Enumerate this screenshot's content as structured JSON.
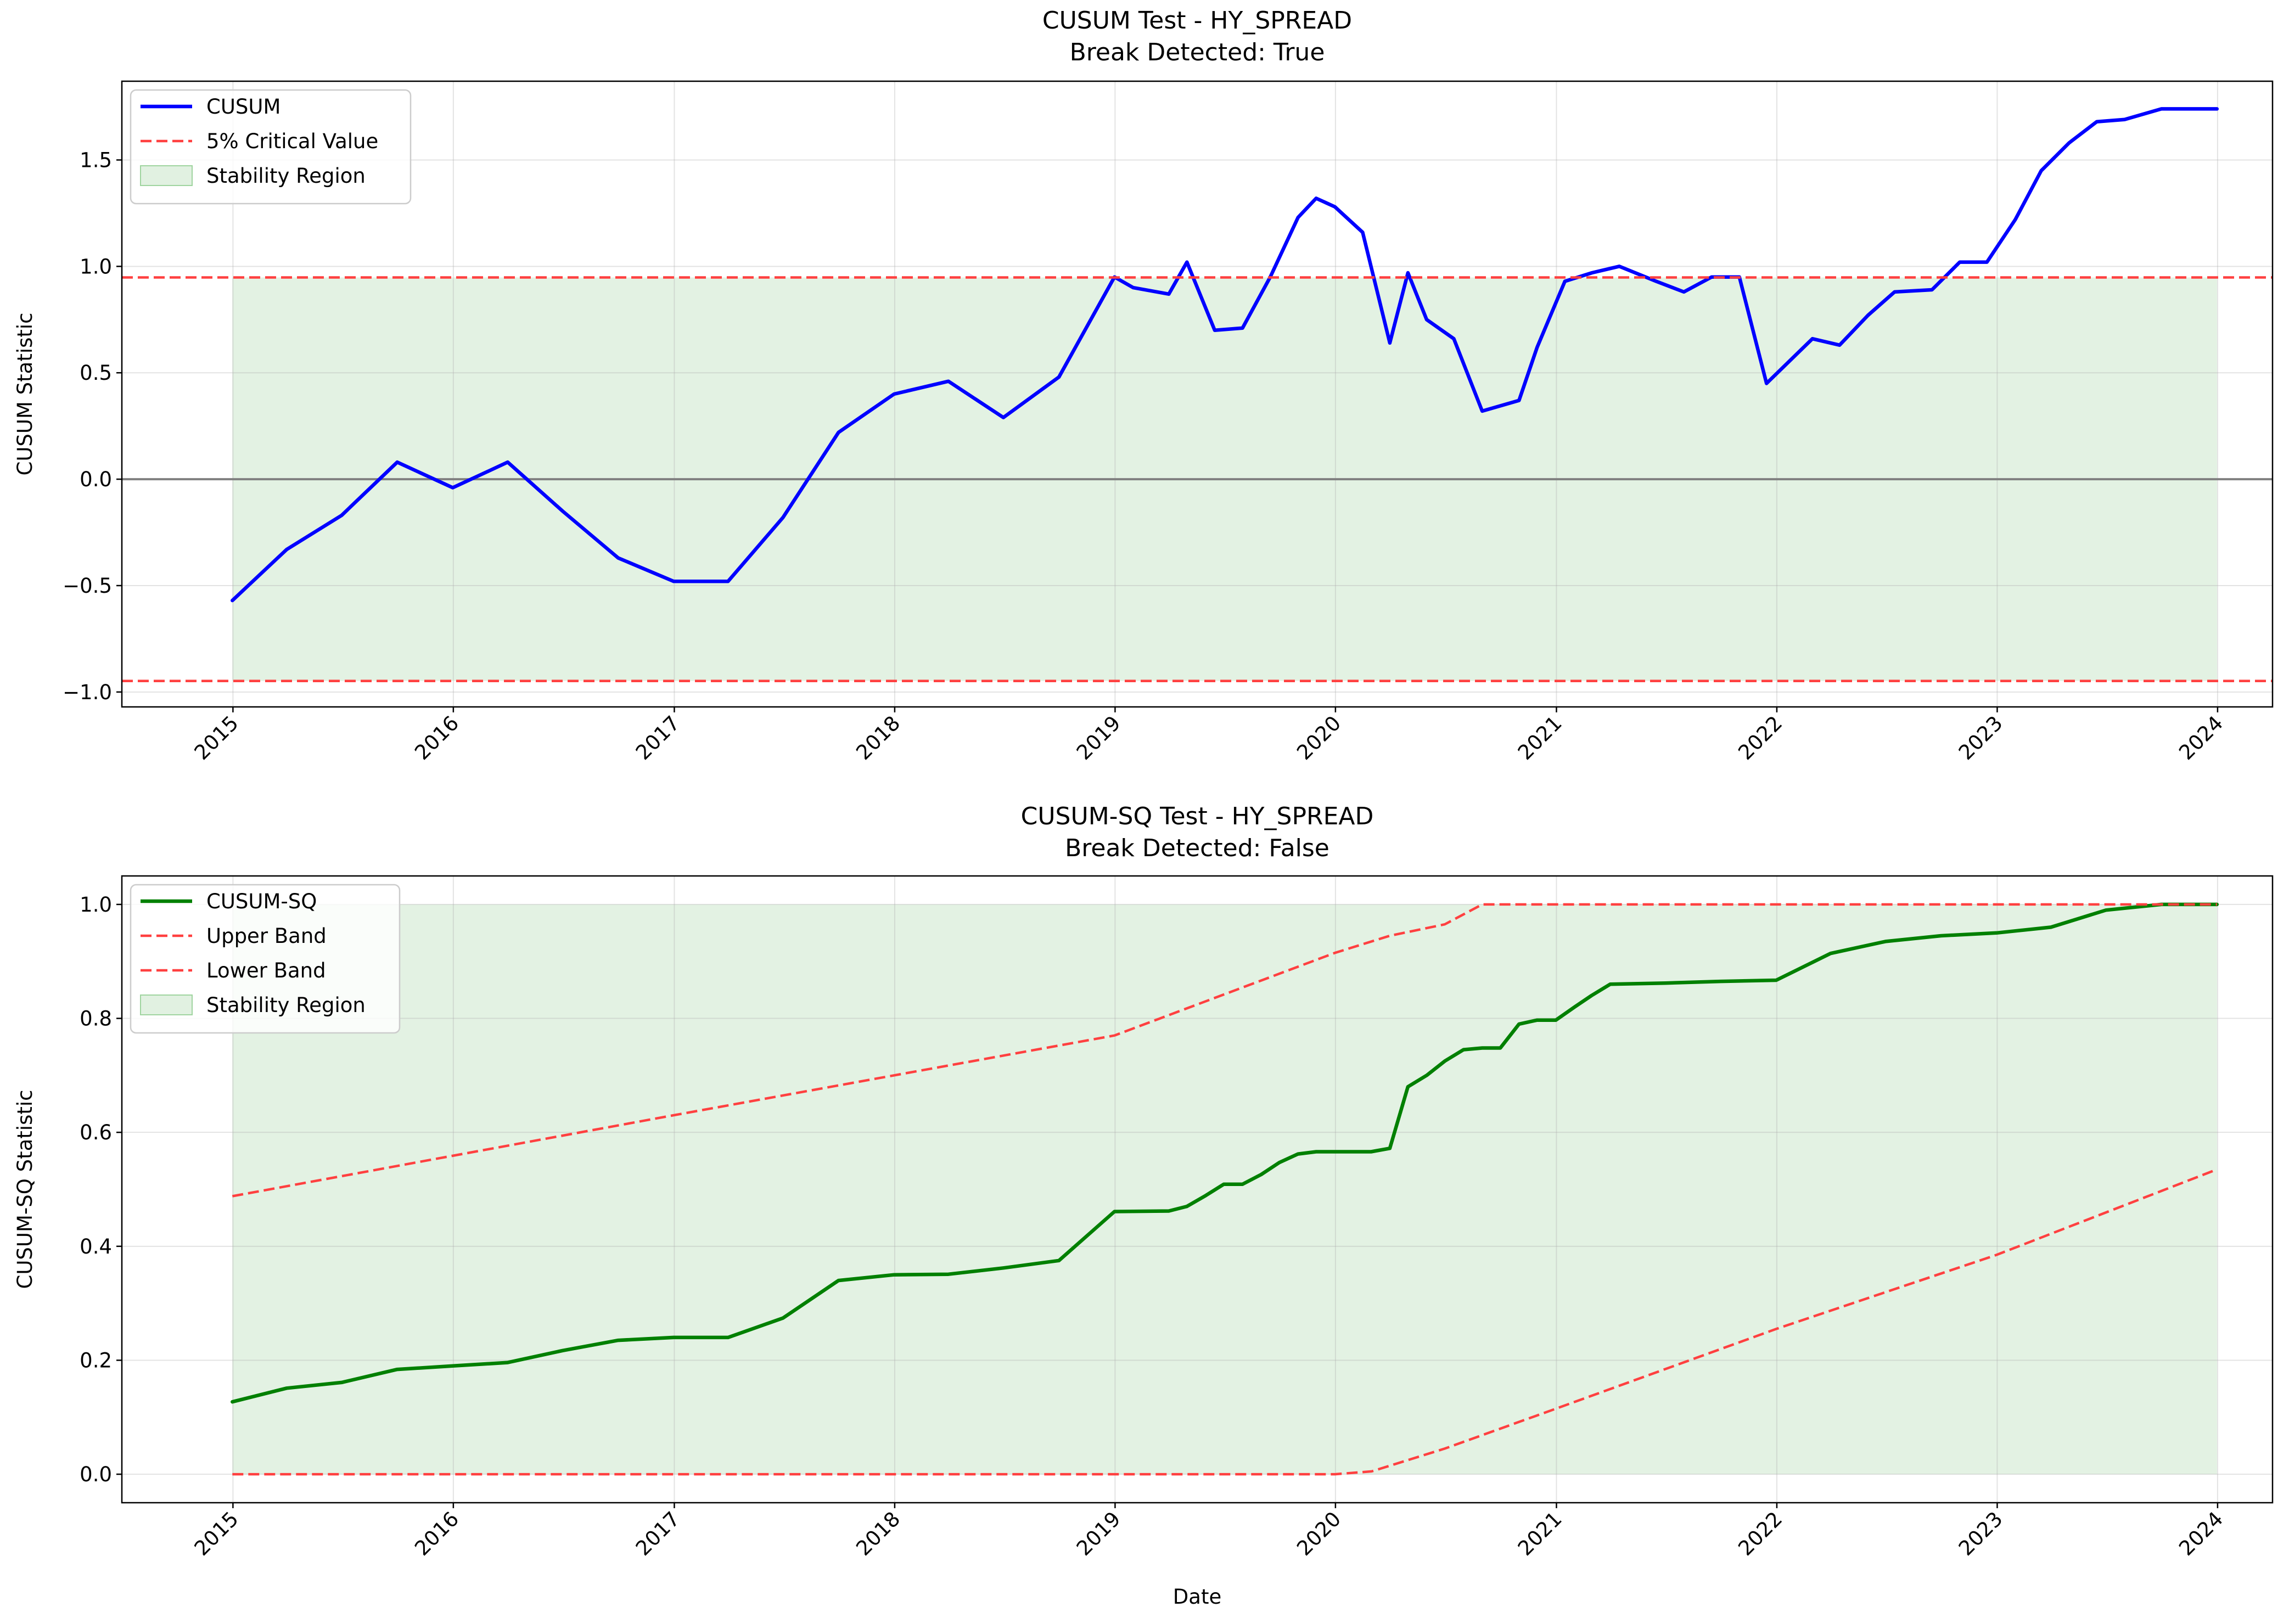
{
  "chart_data": [
    {
      "type": "line",
      "title": "CUSUM Test - HY_SPREAD",
      "subtitle": "Break Detected: True",
      "xlabel": "",
      "ylabel": "CUSUM Statistic",
      "xlim": [
        "2014-07-01",
        "2024-04-01"
      ],
      "ylim": [
        -1.07,
        1.87
      ],
      "xticks": [
        "2015",
        "2016",
        "2017",
        "2018",
        "2019",
        "2020",
        "2021",
        "2022",
        "2023",
        "2024"
      ],
      "yticks": [
        "−1.0",
        "−0.5",
        "0.0",
        "0.5",
        "1.0",
        "1.5"
      ],
      "ytick_values": [
        -1.0,
        -0.5,
        0.0,
        0.5,
        1.0,
        1.5
      ],
      "grid": true,
      "legend_position": "top-left",
      "reference_line": 0,
      "series": [
        {
          "name": "CUSUM",
          "color": "#0000ff",
          "style": "solid",
          "x": [
            "2014-12-31",
            "2015-03-31",
            "2015-06-30",
            "2015-09-30",
            "2015-12-31",
            "2016-03-31",
            "2016-06-30",
            "2016-09-30",
            "2016-12-31",
            "2017-03-31",
            "2017-06-30",
            "2017-09-30",
            "2017-12-31",
            "2018-03-31",
            "2018-06-30",
            "2018-09-30",
            "2018-12-31",
            "2019-01-31",
            "2019-03-31",
            "2019-04-30",
            "2019-06-15",
            "2019-07-31",
            "2019-09-15",
            "2019-10-31",
            "2019-11-30",
            "2019-12-31",
            "2020-02-15",
            "2020-03-31",
            "2020-04-30",
            "2020-05-31",
            "2020-07-15",
            "2020-08-31",
            "2020-10-31",
            "2020-11-30",
            "2021-01-15",
            "2021-03-01",
            "2021-04-15",
            "2021-06-15",
            "2021-07-31",
            "2021-09-15",
            "2021-10-31",
            "2021-12-15",
            "2022-03-01",
            "2022-04-15",
            "2022-06-01",
            "2022-07-15",
            "2022-09-15",
            "2022-10-31",
            "2022-12-15",
            "2023-01-31",
            "2023-03-15",
            "2023-04-30",
            "2023-06-15",
            "2023-07-31",
            "2023-09-30",
            "2023-11-15",
            "2023-12-31"
          ],
          "y": [
            -0.57,
            -0.33,
            -0.17,
            0.08,
            -0.04,
            0.08,
            -0.15,
            -0.37,
            -0.48,
            -0.48,
            -0.18,
            0.22,
            0.4,
            0.46,
            0.29,
            0.48,
            0.95,
            0.9,
            0.87,
            1.02,
            0.7,
            0.71,
            0.95,
            1.23,
            1.32,
            1.28,
            1.16,
            0.64,
            0.97,
            0.75,
            0.66,
            0.32,
            0.37,
            0.62,
            0.93,
            0.97,
            1.0,
            0.93,
            0.88,
            0.95,
            0.95,
            0.45,
            0.66,
            0.63,
            0.77,
            0.88,
            0.89,
            1.02,
            1.02,
            1.22,
            1.45,
            1.58,
            1.68,
            1.69,
            1.74,
            1.74,
            1.74
          ]
        },
        {
          "name": "5% Critical Value",
          "color": "#ff4040",
          "style": "dashed",
          "hlines": [
            0.948,
            -0.948
          ]
        }
      ],
      "band": {
        "name": "Stability Region",
        "color": "#c8e6c8",
        "x_start": "2014-12-31",
        "x_end": "2023-12-31",
        "lower": -0.948,
        "upper": 0.948
      }
    },
    {
      "type": "line",
      "title": "CUSUM-SQ Test - HY_SPREAD",
      "subtitle": "Break Detected: False",
      "xlabel": "Date",
      "ylabel": "CUSUM-SQ Statistic",
      "xlim": [
        "2014-07-01",
        "2024-04-01"
      ],
      "ylim": [
        -0.05,
        1.05
      ],
      "xticks": [
        "2015",
        "2016",
        "2017",
        "2018",
        "2019",
        "2020",
        "2021",
        "2022",
        "2023",
        "2024"
      ],
      "yticks": [
        "0.0",
        "0.2",
        "0.4",
        "0.6",
        "0.8",
        "1.0"
      ],
      "ytick_values": [
        0.0,
        0.2,
        0.4,
        0.6,
        0.8,
        1.0
      ],
      "grid": true,
      "legend_position": "top-left",
      "series": [
        {
          "name": "CUSUM-SQ",
          "color": "#008000",
          "style": "solid",
          "x": [
            "2014-12-31",
            "2015-03-31",
            "2015-06-30",
            "2015-09-30",
            "2015-12-31",
            "2016-03-31",
            "2016-06-30",
            "2016-09-30",
            "2016-12-31",
            "2017-03-31",
            "2017-06-30",
            "2017-09-30",
            "2017-12-31",
            "2018-03-31",
            "2018-06-30",
            "2018-09-30",
            "2018-12-31",
            "2019-03-31",
            "2019-04-30",
            "2019-05-31",
            "2019-06-30",
            "2019-07-31",
            "2019-08-31",
            "2019-09-30",
            "2019-10-31",
            "2019-11-30",
            "2019-12-31",
            "2020-01-31",
            "2020-02-29",
            "2020-03-31",
            "2020-04-30",
            "2020-05-31",
            "2020-06-30",
            "2020-07-31",
            "2020-08-31",
            "2020-09-30",
            "2020-10-31",
            "2020-11-30",
            "2020-12-31",
            "2021-01-31",
            "2021-02-28",
            "2021-03-31",
            "2021-06-30",
            "2021-09-30",
            "2021-12-31",
            "2022-03-31",
            "2022-06-30",
            "2022-09-30",
            "2022-12-31",
            "2023-03-31",
            "2023-06-30",
            "2023-09-30",
            "2023-12-31"
          ],
          "y": [
            0.127,
            0.151,
            0.161,
            0.184,
            0.19,
            0.196,
            0.217,
            0.235,
            0.24,
            0.24,
            0.274,
            0.34,
            0.35,
            0.351,
            0.362,
            0.375,
            0.461,
            0.462,
            0.47,
            0.489,
            0.509,
            0.509,
            0.526,
            0.547,
            0.562,
            0.566,
            0.566,
            0.566,
            0.566,
            0.572,
            0.68,
            0.7,
            0.725,
            0.745,
            0.748,
            0.748,
            0.79,
            0.797,
            0.797,
            0.82,
            0.84,
            0.86,
            0.862,
            0.865,
            0.867,
            0.914,
            0.935,
            0.945,
            0.95,
            0.96,
            0.99,
            1.0,
            1.0
          ]
        },
        {
          "name": "Upper Band",
          "color": "#ff4040",
          "style": "dashed",
          "x": [
            "2014-12-31",
            "2016-12-31",
            "2018-12-31",
            "2019-12-31",
            "2020-03-31",
            "2020-06-30",
            "2020-08-31",
            "2023-12-31"
          ],
          "y": [
            0.488,
            0.63,
            0.77,
            0.915,
            0.945,
            0.965,
            1.0,
            1.0
          ]
        },
        {
          "name": "Lower Band",
          "color": "#ff4040",
          "style": "dashed",
          "x": [
            "2014-12-31",
            "2019-12-31",
            "2020-03-01",
            "2020-06-30",
            "2020-12-31",
            "2021-12-31",
            "2022-12-31",
            "2023-12-31"
          ],
          "y": [
            0.0,
            0.0,
            0.005,
            0.045,
            0.115,
            0.255,
            0.385,
            0.535
          ]
        }
      ],
      "band": {
        "name": "Stability Region",
        "color": "#c8e6c8",
        "x_start": "2014-12-31",
        "x_end": "2023-12-31",
        "lower": 0.0,
        "upper": 1.0
      }
    }
  ]
}
